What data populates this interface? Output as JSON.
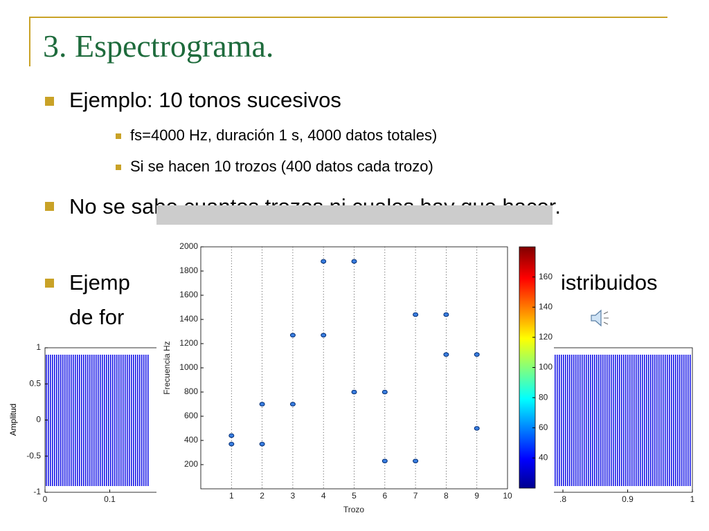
{
  "slide": {
    "title": "3. Espectrograma.",
    "bullets": [
      {
        "text": "Ejemplo: 10 tonos sucesivos",
        "sub": [
          "fs=4000 Hz, duración 1 s, 4000 datos totales)",
          "Si se hacen 10 trozos (400 datos cada trozo)"
        ]
      },
      {
        "text": "No se sabe cuantos trozos ni cuales hay que hacer."
      },
      {
        "fragments": [
          "Ejemp",
          "istribuidos",
          "de for"
        ]
      }
    ]
  },
  "chart_data": [
    {
      "type": "line",
      "ylabel": "Amplitud",
      "xlim": [
        0,
        1
      ],
      "ylim": [
        -1,
        1
      ],
      "xticks": [
        0,
        0.1,
        {
          "value": 0.8,
          "label": ".8"
        },
        0.9,
        1
      ],
      "yticks": [
        -1,
        -0.5,
        0,
        0.5,
        1
      ]
    },
    {
      "type": "scatter",
      "xlabel": "Trozo",
      "ylabel": "Frecuencia Hz",
      "xlim": [
        0,
        10
      ],
      "ylim": [
        0,
        2000
      ],
      "xticks": [
        1,
        2,
        3,
        4,
        5,
        6,
        7,
        8,
        9,
        10
      ],
      "yticks": [
        200,
        400,
        600,
        800,
        1000,
        1200,
        1400,
        1600,
        1800,
        2000
      ],
      "grid": "x",
      "series": [
        {
          "color": "#3a7ee0",
          "x": [
            1,
            1,
            2,
            2,
            3,
            3,
            4,
            4,
            5,
            5,
            6,
            6,
            7,
            7,
            8,
            8,
            9,
            9
          ],
          "values": [
            440,
            370,
            700,
            370,
            1270,
            700,
            1880,
            1270,
            1880,
            800,
            800,
            230,
            1440,
            230,
            1440,
            1110,
            1110,
            500
          ]
        }
      ],
      "colorbar": {
        "lim": [
          20,
          180
        ],
        "ticks": [
          40,
          60,
          80,
          100,
          120,
          140,
          160
        ]
      }
    }
  ]
}
